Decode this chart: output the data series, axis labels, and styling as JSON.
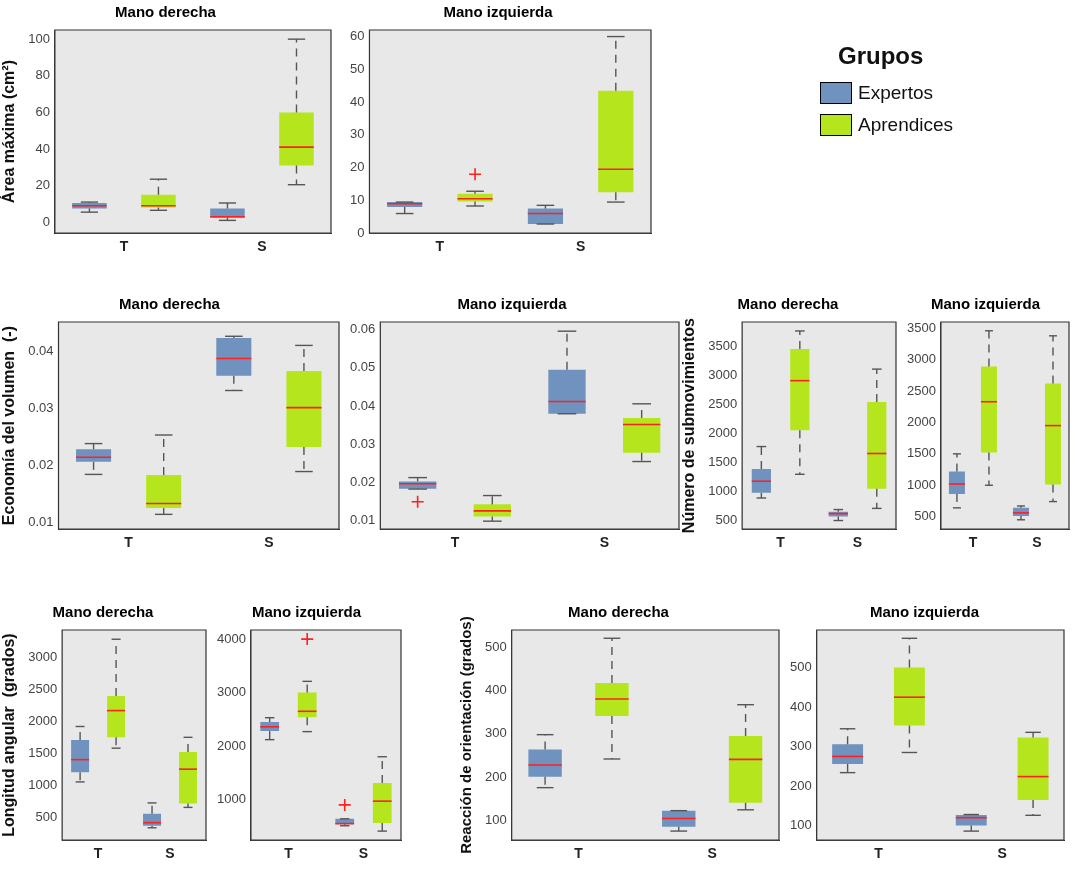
{
  "chart_data": [
    {
      "type": "box",
      "title": "Mano derecha",
      "ylabel": "Área máxima (cm²)",
      "categories": [
        "T",
        "S"
      ],
      "ylim": [
        -6,
        105
      ],
      "yticks": [
        0,
        20,
        40,
        60,
        80,
        100
      ],
      "grid": false,
      "legend": "top right",
      "legend_title": "Grupos",
      "series": [
        {
          "name": "Expertos",
          "color": "#7092be",
          "boxes": [
            {
              "low": 5.5,
              "q1": 7.5,
              "median": 9,
              "q3": 10.5,
              "high": 11
            },
            {
              "low": 1,
              "q1": 2.5,
              "median": 3,
              "q3": 7.5,
              "high": 10.5
            }
          ]
        },
        {
          "name": "Aprendices",
          "color": "#b5e61d",
          "boxes": [
            {
              "low": 6.5,
              "q1": 8,
              "median": 9,
              "q3": 15,
              "high": 23.5
            },
            {
              "low": 20.5,
              "q1": 31,
              "median": 41,
              "q3": 60,
              "high": 100
            }
          ]
        }
      ]
    },
    {
      "type": "box",
      "title": "Mano izquierda",
      "categories": [
        "T",
        "S"
      ],
      "ylim": [
        0,
        62
      ],
      "yticks": [
        0,
        10,
        20,
        30,
        40,
        50,
        60
      ],
      "grid": false,
      "series": [
        {
          "color": "#7092be",
          "boxes": [
            {
              "low": 6,
              "q1": 8,
              "median": 9,
              "q3": 9.5,
              "high": 9.5
            },
            {
              "low": 2.8,
              "q1": 2.8,
              "median": 6,
              "q3": 7.5,
              "high": 8.5
            }
          ]
        },
        {
          "color": "#b5e61d",
          "boxes": [
            {
              "low": 8.3,
              "q1": 9.7,
              "median": 10.5,
              "q3": 12,
              "high": 12.8,
              "outliers": [
                18
              ]
            },
            {
              "low": 9.5,
              "q1": 12.5,
              "median": 19.5,
              "q3": 43.5,
              "high": 60
            }
          ]
        }
      ]
    },
    {
      "type": "box",
      "title": "Mano derecha",
      "ylabel": "Economía del volumen  (-)",
      "categories": [
        "T",
        "S"
      ],
      "ylim": [
        0.0088,
        0.0451
      ],
      "yticks": [
        0.01,
        0.02,
        0.03,
        0.04
      ],
      "grid": false,
      "series": [
        {
          "color": "#7092be",
          "boxes": [
            {
              "low": 0.0184,
              "q1": 0.0206,
              "median": 0.0214,
              "q3": 0.0228,
              "high": 0.0238
            },
            {
              "low": 0.0331,
              "q1": 0.0357,
              "median": 0.0387,
              "q3": 0.0423,
              "high": 0.0426
            }
          ]
        },
        {
          "color": "#b5e61d",
          "boxes": [
            {
              "low": 0.0114,
              "q1": 0.0125,
              "median": 0.0133,
              "q3": 0.0183,
              "high": 0.0253
            },
            {
              "low": 0.0189,
              "q1": 0.0232,
              "median": 0.0301,
              "q3": 0.0365,
              "high": 0.041
            }
          ]
        }
      ]
    },
    {
      "type": "box",
      "title": "Mano izquierda",
      "categories": [
        "T",
        "S"
      ],
      "ylim": [
        0.0078,
        0.062
      ],
      "yticks": [
        0.01,
        0.02,
        0.03,
        0.04,
        0.05,
        0.06
      ],
      "grid": false,
      "series": [
        {
          "color": "#7092be",
          "boxes": [
            {
              "low": 0.0183,
              "q1": 0.0184,
              "median": 0.0197,
              "q3": 0.0203,
              "high": 0.0213,
              "outliers": [
                0.015
              ]
            },
            {
              "low": 0.038,
              "q1": 0.038,
              "median": 0.0412,
              "q3": 0.0495,
              "high": 0.0596
            }
          ]
        },
        {
          "color": "#b5e61d",
          "boxes": [
            {
              "low": 0.0099,
              "q1": 0.0111,
              "median": 0.0126,
              "q3": 0.0143,
              "high": 0.0166
            },
            {
              "low": 0.0255,
              "q1": 0.0278,
              "median": 0.0352,
              "q3": 0.0369,
              "high": 0.0406
            }
          ]
        }
      ]
    },
    {
      "type": "box",
      "title": "Mano derecha",
      "ylabel": "Número de submovimientos",
      "categories": [
        "T",
        "S"
      ],
      "ylim": [
        340,
        3925
      ],
      "yticks": [
        500,
        1000,
        1500,
        2000,
        2500,
        3000,
        3500
      ],
      "grid": false,
      "series": [
        {
          "color": "#7092be",
          "boxes": [
            {
              "low": 880,
              "q1": 970,
              "median": 1170,
              "q3": 1380,
              "high": 1770
            },
            {
              "low": 490,
              "q1": 560,
              "median": 610,
              "q3": 640,
              "high": 680
            }
          ]
        },
        {
          "color": "#b5e61d",
          "boxes": [
            {
              "low": 1290,
              "q1": 2050,
              "median": 2910,
              "q3": 3460,
              "high": 3770
            },
            {
              "low": 700,
              "q1": 1040,
              "median": 1650,
              "q3": 2540,
              "high": 3110
            }
          ]
        }
      ]
    },
    {
      "type": "box",
      "title": "Mano izquierda",
      "categories": [
        "T",
        "S"
      ],
      "ylim": [
        300,
        3600
      ],
      "yticks": [
        500,
        1000,
        1500,
        2000,
        2500,
        3000,
        3500
      ],
      "grid": false,
      "series": [
        {
          "color": "#7092be",
          "boxes": [
            {
              "low": 640,
              "q1": 860,
              "median": 1020,
              "q3": 1220,
              "high": 1500
            },
            {
              "low": 450,
              "q1": 510,
              "median": 560,
              "q3": 640,
              "high": 670
            }
          ]
        },
        {
          "color": "#b5e61d",
          "boxes": [
            {
              "low": 1000,
              "q1": 1520,
              "median": 2330,
              "q3": 2890,
              "high": 3460
            },
            {
              "low": 740,
              "q1": 1010,
              "median": 1950,
              "q3": 2620,
              "high": 3380
            }
          ]
        }
      ]
    },
    {
      "type": "box",
      "title": "Mano derecha",
      "ylabel": "Longitud angular  (grados)",
      "categories": [
        "T",
        "S"
      ],
      "ylim": [
        135,
        3435
      ],
      "yticks": [
        500,
        1000,
        1500,
        2000,
        2500,
        3000
      ],
      "grid": false,
      "series": [
        {
          "color": "#7092be",
          "boxes": [
            {
              "low": 1050,
              "q1": 1200,
              "median": 1400,
              "q3": 1710,
              "high": 1920
            },
            {
              "low": 330,
              "q1": 360,
              "median": 410,
              "q3": 550,
              "high": 720
            }
          ]
        },
        {
          "color": "#b5e61d",
          "boxes": [
            {
              "low": 1580,
              "q1": 1750,
              "median": 2170,
              "q3": 2400,
              "high": 3290
            },
            {
              "low": 650,
              "q1": 710,
              "median": 1250,
              "q3": 1520,
              "high": 1750
            }
          ]
        }
      ]
    },
    {
      "type": "box",
      "title": "Mano izquierda",
      "categories": [
        "T",
        "S"
      ],
      "ylim": [
        240,
        4170
      ],
      "yticks": [
        1000,
        2000,
        3000,
        4000
      ],
      "grid": false,
      "series": [
        {
          "color": "#7092be",
          "boxes": [
            {
              "low": 2120,
              "q1": 2280,
              "median": 2360,
              "q3": 2450,
              "high": 2530
            },
            {
              "low": 510,
              "q1": 540,
              "median": 550,
              "q3": 640,
              "high": 640,
              "outliers": [
                900
              ]
            }
          ]
        },
        {
          "color": "#b5e61d",
          "boxes": [
            {
              "low": 2270,
              "q1": 2540,
              "median": 2650,
              "q3": 3000,
              "high": 3210,
              "outliers": [
                4000
              ]
            },
            {
              "low": 410,
              "q1": 560,
              "median": 970,
              "q3": 1310,
              "high": 1800
            }
          ]
        }
      ]
    },
    {
      "type": "box",
      "title": "Mano derecha",
      "ylabel": "Reacción de orientación (grados)",
      "categories": [
        "T",
        "S"
      ],
      "ylim": [
        55,
        539
      ],
      "yticks": [
        100,
        200,
        300,
        400,
        500
      ],
      "grid": false,
      "series": [
        {
          "color": "#7092be",
          "boxes": [
            {
              "low": 176,
              "q1": 201,
              "median": 228,
              "q3": 264,
              "high": 298
            },
            {
              "low": 76,
              "q1": 86,
              "median": 105,
              "q3": 123,
              "high": 123
            }
          ]
        },
        {
          "color": "#b5e61d",
          "boxes": [
            {
              "low": 242,
              "q1": 341,
              "median": 380,
              "q3": 417,
              "high": 520
            },
            {
              "low": 125,
              "q1": 141,
              "median": 241,
              "q3": 295,
              "high": 367
            }
          ]
        }
      ]
    },
    {
      "type": "box",
      "title": "Mano izquierda",
      "categories": [
        "T",
        "S"
      ],
      "ylim": [
        63,
        595
      ],
      "yticks": [
        100,
        200,
        300,
        400,
        500
      ],
      "grid": false,
      "series": [
        {
          "color": "#7092be",
          "boxes": [
            {
              "low": 234,
              "q1": 256,
              "median": 275,
              "q3": 306,
              "high": 345
            },
            {
              "low": 86,
              "q1": 100,
              "median": 120,
              "q3": 127,
              "high": 128
            }
          ]
        },
        {
          "color": "#b5e61d",
          "boxes": [
            {
              "low": 285,
              "q1": 353,
              "median": 425,
              "q3": 500,
              "high": 574
            },
            {
              "low": 126,
              "q1": 165,
              "median": 224,
              "q3": 323,
              "high": 336
            }
          ]
        }
      ]
    }
  ]
}
